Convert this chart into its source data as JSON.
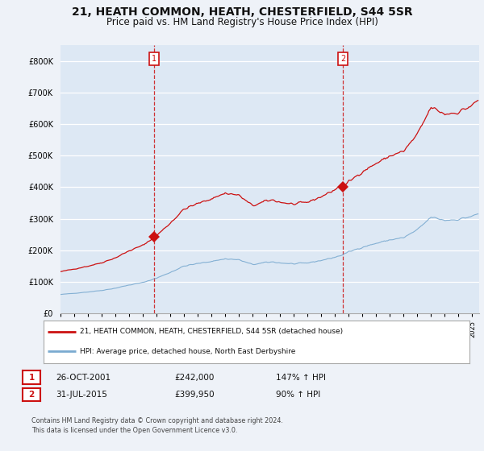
{
  "title": "21, HEATH COMMON, HEATH, CHESTERFIELD, S44 5SR",
  "subtitle": "Price paid vs. HM Land Registry's House Price Index (HPI)",
  "title_fontsize": 10,
  "subtitle_fontsize": 8.5,
  "ylabel_ticks": [
    "£0",
    "£100K",
    "£200K",
    "£300K",
    "£400K",
    "£500K",
    "£600K",
    "£700K",
    "£800K"
  ],
  "ytick_values": [
    0,
    100000,
    200000,
    300000,
    400000,
    500000,
    600000,
    700000,
    800000
  ],
  "ylim": [
    0,
    850000
  ],
  "xlim_start": 1995.0,
  "xlim_end": 2025.5,
  "background_color": "#eef2f8",
  "plot_bg_color": "#dde8f4",
  "grid_color": "#ffffff",
  "hpi_color": "#7aaad0",
  "price_color": "#cc1111",
  "vline_color": "#cc1111",
  "marker1_x": 2001.82,
  "marker1_y": 242000,
  "marker1_label": "1",
  "marker2_x": 2015.58,
  "marker2_y": 399950,
  "marker2_label": "2",
  "legend_line1": "21, HEATH COMMON, HEATH, CHESTERFIELD, S44 5SR (detached house)",
  "legend_line2": "HPI: Average price, detached house, North East Derbyshire",
  "table_row1": [
    "1",
    "26-OCT-2001",
    "£242,000",
    "147% ↑ HPI"
  ],
  "table_row2": [
    "2",
    "31-JUL-2015",
    "£399,950",
    "90% ↑ HPI"
  ],
  "footer": "Contains HM Land Registry data © Crown copyright and database right 2024.\nThis data is licensed under the Open Government Licence v3.0."
}
